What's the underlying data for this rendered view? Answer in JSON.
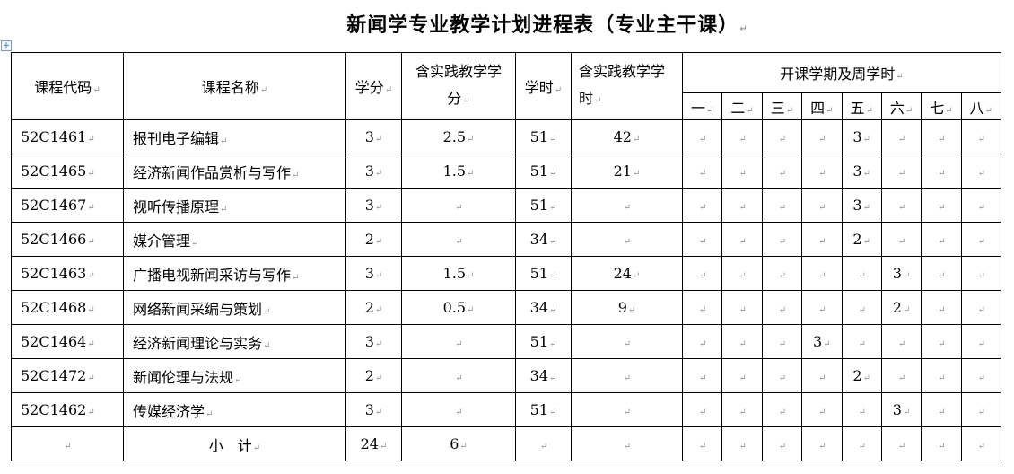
{
  "title": "新闻学专业教学计划进程表（专业主干课）",
  "headers": {
    "code": "课程代码",
    "name": "课程名称",
    "credits": "学分",
    "practice_credits": "含实践教学学分",
    "hours": "学时",
    "practice_hours": "含实践教学学时",
    "semester_group": "开课学期及周学时",
    "semesters": [
      "一",
      "二",
      "三",
      "四",
      "五",
      "六",
      "七",
      "八"
    ]
  },
  "rows": [
    {
      "code": "52C1461",
      "name": "报刊电子编辑",
      "credits": "3",
      "practice_credits": "2.5",
      "hours": "51",
      "practice_hours": "42",
      "sem": [
        "",
        "",
        "",
        "",
        "3",
        "",
        "",
        ""
      ]
    },
    {
      "code": "52C1465",
      "name": "经济新闻作品赏析与写作",
      "credits": "3",
      "practice_credits": "1.5",
      "hours": "51",
      "practice_hours": "21",
      "sem": [
        "",
        "",
        "",
        "",
        "3",
        "",
        "",
        ""
      ]
    },
    {
      "code": "52C1467",
      "name": "视听传播原理",
      "credits": "3",
      "practice_credits": "",
      "hours": "51",
      "practice_hours": "",
      "sem": [
        "",
        "",
        "",
        "",
        "3",
        "",
        "",
        ""
      ]
    },
    {
      "code": "52C1466",
      "name": "媒介管理",
      "credits": "2",
      "practice_credits": "",
      "hours": "34",
      "practice_hours": "",
      "sem": [
        "",
        "",
        "",
        "",
        "2",
        "",
        "",
        ""
      ]
    },
    {
      "code": "52C1463",
      "name": "广播电视新闻采访与写作",
      "credits": "3",
      "practice_credits": "1.5",
      "hours": "51",
      "practice_hours": "24",
      "sem": [
        "",
        "",
        "",
        "",
        "",
        "3",
        "",
        ""
      ]
    },
    {
      "code": "52C1468",
      "name": "网络新闻采编与策划",
      "credits": "2",
      "practice_credits": "0.5",
      "hours": "34",
      "practice_hours": "9",
      "sem": [
        "",
        "",
        "",
        "",
        "",
        "2",
        "",
        ""
      ]
    },
    {
      "code": "52C1464",
      "name": "经济新闻理论与实务",
      "credits": "3",
      "practice_credits": "",
      "hours": "51",
      "practice_hours": "",
      "sem": [
        "",
        "",
        "",
        "3",
        "",
        "",
        "",
        ""
      ]
    },
    {
      "code": "52C1472",
      "name": "新闻伦理与法规",
      "credits": "2",
      "practice_credits": "",
      "hours": "34",
      "practice_hours": "",
      "sem": [
        "",
        "",
        "",
        "",
        "2",
        "",
        "",
        ""
      ]
    },
    {
      "code": "52C1462",
      "name": "传媒经济学",
      "credits": "3",
      "practice_credits": "",
      "hours": "51",
      "practice_hours": "",
      "sem": [
        "",
        "",
        "",
        "",
        "",
        "3",
        "",
        ""
      ]
    }
  ],
  "subtotal": {
    "label": "小　计",
    "credits": "24",
    "practice_credits": "6"
  }
}
